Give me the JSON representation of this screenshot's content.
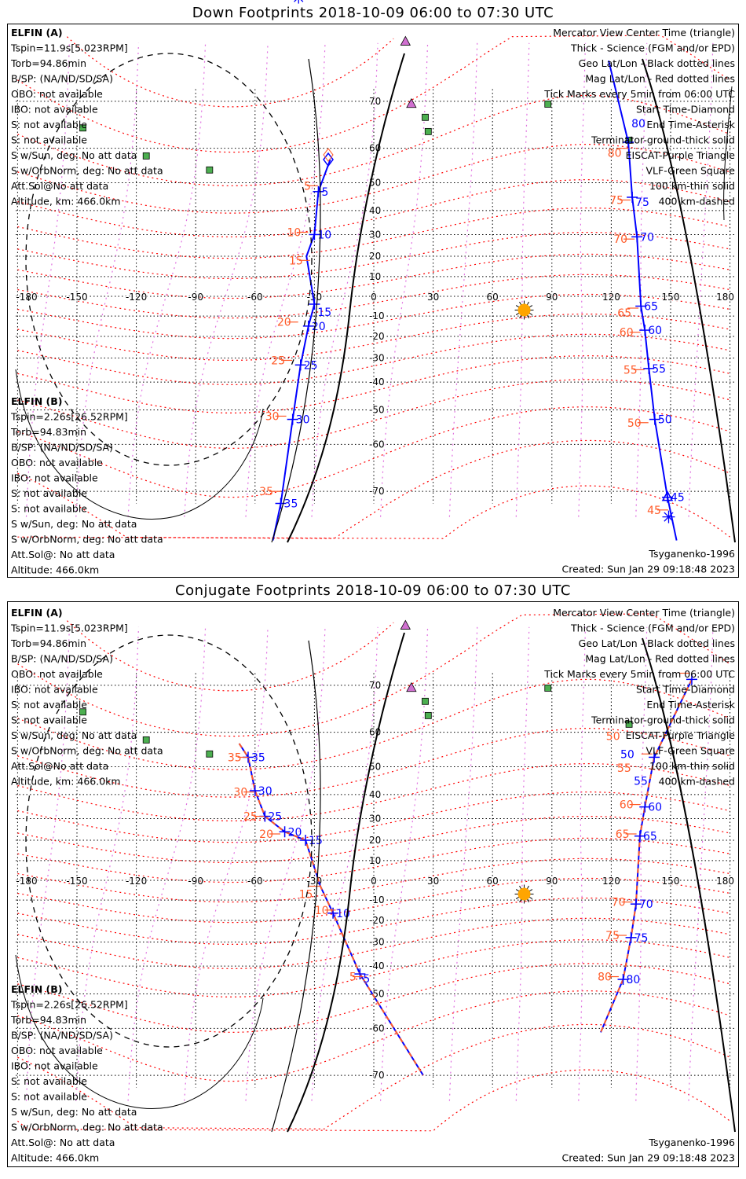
{
  "panels": [
    {
      "title": "Down Footprints 2018-10-09 06:00 to 07:30 UTC",
      "elfin_a": {
        "name": "ELFIN (A)",
        "lines": [
          "Tspin=11.9s[5.023RPM]",
          "Torb=94.86min",
          "B/SP: (NA/ND/SD/SA)",
          "OBO: not available",
          "IBO: not available",
          "S: not available",
          "S: not available",
          "S w/Sun, deg: No att data",
          "S w/OrbNorm, deg: No att data",
          "Att.Sol@No att data",
          "Altitude, km: 466.0km"
        ]
      },
      "elfin_b": {
        "name": "ELFIN (B)",
        "lines": [
          "Tspin=2.26s[26.52RPM]",
          "Torb=94.83min",
          "B/SP: (NA/ND/SD/SA)",
          "OBO: not available",
          "IBO: not available",
          "S: not available",
          "S: not available",
          "S w/Sun, deg: No att data",
          "S w/OrbNorm, deg: No att data",
          "Att.Sol@: No att data",
          "Altitude: 466.0km"
        ]
      },
      "model": "Tsyganenko-1996",
      "created": "Created: Sun Jan 29 09:18:48 2023",
      "tracks": [
        {
          "style": "solid",
          "points": [
            [
              -22,
              57
            ],
            [
              -28,
              47
            ],
            [
              -30,
              30
            ],
            [
              -34,
              20
            ],
            [
              -30,
              -4
            ],
            [
              -33,
              -15
            ],
            [
              -37,
              -33
            ],
            [
              -41,
              -53
            ],
            [
              -47,
              -72
            ],
            [
              -51,
              -77
            ]
          ],
          "ticks": [
            {
              "label": "5",
              "lon": -28,
              "lat": 47
            },
            {
              "label": "10",
              "lon": -30,
              "lat": 30
            },
            {
              "label": "15",
              "lon": -30,
              "lat": -4
            },
            {
              "label": "20",
              "lon": -33,
              "lat": -15
            },
            {
              "label": "25",
              "lon": -37,
              "lat": -33
            },
            {
              "label": "30",
              "lon": -41,
              "lat": -53
            },
            {
              "label": "35",
              "lon": -47,
              "lat": -72
            }
          ],
          "red_ticks": [
            {
              "label": "5",
              "lon": -31,
              "lat": 49
            },
            {
              "label": "10",
              "lon": -36,
              "lat": 31
            },
            {
              "label": "15",
              "lon": -35,
              "lat": 18
            },
            {
              "label": "20",
              "lon": -41,
              "lat": -13
            },
            {
              "label": "25",
              "lon": -44,
              "lat": -31
            },
            {
              "label": "30",
              "lon": -47,
              "lat": -52
            },
            {
              "label": "35",
              "lon": -50,
              "lat": -70
            }
          ],
          "start_marker": [
            -23,
            57
          ],
          "end_marker": [
            -38,
            85
          ]
        },
        {
          "style": "solid",
          "points": [
            [
              118.7,
              76
            ],
            [
              128.6,
              61.5
            ],
            [
              130.6,
              45
            ],
            [
              133,
              29
            ],
            [
              135,
              -5
            ],
            [
              137,
              -17
            ],
            [
              139,
              -34.5
            ],
            [
              142,
              -53
            ],
            [
              148.4,
              -71
            ],
            [
              153,
              -77
            ]
          ],
          "ticks": [
            {
              "label": "80",
              "lon": 128.6,
              "lat": 61.5
            },
            {
              "label": "75",
              "lon": 130.6,
              "lat": 45
            },
            {
              "label": "70",
              "lon": 133,
              "lat": 29
            },
            {
              "label": "65",
              "lon": 135,
              "lat": -5
            },
            {
              "label": "60",
              "lon": 137,
              "lat": -17
            },
            {
              "label": "55",
              "lon": 139,
              "lat": -34.5
            },
            {
              "label": "50",
              "lon": 142,
              "lat": -53
            },
            {
              "label": "45",
              "lon": 148.4,
              "lat": -71
            }
          ],
          "red_ticks": [
            {
              "label": "80",
              "lon": 126,
              "lat": 60
            },
            {
              "label": "75",
              "lon": 127,
              "lat": 44
            },
            {
              "label": "70",
              "lon": 129,
              "lat": 28
            },
            {
              "label": "65",
              "lon": 131,
              "lat": -6
            },
            {
              "label": "60",
              "lon": 132,
              "lat": -18
            },
            {
              "label": "55",
              "lon": 134,
              "lat": -35
            },
            {
              "label": "50",
              "lon": 136,
              "lat": -54
            },
            {
              "label": "45",
              "lon": 146,
              "lat": -73
            }
          ],
          "center_marker": [
            148.4,
            -71
          ],
          "end_marker": [
            149,
            -74
          ]
        }
      ]
    },
    {
      "title": "Conjugate Footprints 2018-10-09 06:00 to 07:30 UTC",
      "elfin_a": {
        "name": "ELFIN (A)",
        "lines": [
          "Tspin=11.9s[5.023RPM]",
          "Torb=94.86min",
          "B/SP: (NA/ND/SD/SA)",
          "OBO: not available",
          "IBO: not available",
          "S: not available",
          "S: not available",
          "S w/Sun, deg: No att data",
          "S w/OrbNorm, deg: No att data",
          "Att.Sol@No att data",
          "Altitude, km: 466.0km"
        ]
      },
      "elfin_b": {
        "name": "ELFIN (B)",
        "lines": [
          "Tspin=2.26s[26.52RPM]",
          "Torb=94.83min",
          "B/SP: (NA/ND/SD/SA)",
          "OBO: not available",
          "IBO: not available",
          "S: not available",
          "S: not available",
          "S w/Sun, deg: No att data",
          "S w/OrbNorm, deg: No att data",
          "Att.Sol@: No att data",
          "Altitude: 466.0km"
        ]
      },
      "model": "Tsyganenko-1996",
      "created": "Created: Sun Jan 29 09:18:48 2023",
      "tracks": [
        {
          "style": "dashed",
          "points": [
            [
              -68,
              57
            ],
            [
              -63.5,
              53
            ],
            [
              -60,
              41.5
            ],
            [
              -55,
              31
            ],
            [
              -45,
              24
            ],
            [
              -34.5,
              20
            ],
            [
              -27,
              -3
            ],
            [
              -20.6,
              -16.5
            ],
            [
              -7,
              -43
            ],
            [
              25,
              -70
            ]
          ],
          "ticks": [
            {
              "label": "35",
              "lon": -63.5,
              "lat": 53
            },
            {
              "label": "30",
              "lon": -60,
              "lat": 41.5
            },
            {
              "label": "25",
              "lon": -55,
              "lat": 31
            },
            {
              "label": "20",
              "lon": -45,
              "lat": 24
            },
            {
              "label": "15",
              "lon": -34.5,
              "lat": 20
            },
            {
              "label": "10",
              "lon": -20.6,
              "lat": -16.5
            },
            {
              "label": "5",
              "lon": -7,
              "lat": -43
            }
          ],
          "red_ticks": [
            {
              "label": "35",
              "lon": -66,
              "lat": 53
            },
            {
              "label": "30",
              "lon": -63,
              "lat": 41
            },
            {
              "label": "25",
              "lon": -58,
              "lat": 31
            },
            {
              "label": "20",
              "lon": -50,
              "lat": 23
            },
            {
              "label": "15",
              "lon": -30,
              "lat": -3
            },
            {
              "label": "10",
              "lon": -22,
              "lat": -15
            },
            {
              "label": "5",
              "lon": -8,
              "lat": -44
            }
          ]
        },
        {
          "style": "dashed",
          "points": [
            [
              160.7,
              71
            ],
            [
              141.7,
              53
            ],
            [
              137,
              35
            ],
            [
              134.5,
              22
            ],
            [
              132.5,
              -12
            ],
            [
              130,
              -28
            ],
            [
              126,
              -45
            ],
            [
              114.7,
              -61
            ]
          ],
          "ticks": [
            {
              "label": "50",
              "lon": 160.7,
              "lat": 71
            },
            {
              "label": "55",
              "lon": 141.7,
              "lat": 53
            },
            {
              "label": "60",
              "lon": 137,
              "lat": 35
            },
            {
              "label": "65",
              "lon": 134.5,
              "lat": 22
            },
            {
              "label": "70",
              "lon": 132.5,
              "lat": -12
            },
            {
              "label": "75",
              "lon": 130,
              "lat": -28
            },
            {
              "label": "80",
              "lon": 126,
              "lat": -45
            }
          ],
          "red_ticks": [
            {
              "label": "50",
              "lon": 157,
              "lat": 72
            },
            {
              "label": "55",
              "lon": 138,
              "lat": 54
            },
            {
              "label": "60",
              "lon": 132,
              "lat": 36
            },
            {
              "label": "65",
              "lon": 130,
              "lat": 23
            },
            {
              "label": "70",
              "lon": 128,
              "lat": -11
            },
            {
              "label": "75",
              "lon": 125,
              "lat": -27
            },
            {
              "label": "80",
              "lon": 121,
              "lat": -44
            }
          ]
        }
      ]
    }
  ],
  "legend": [
    "Mercator View Center Time (triangle)",
    "Thick - Science (FGM and/or EPD)",
    "Geo Lat/Lon - Black dotted lines",
    "Mag Lat/Lon - Red dotted lines",
    "Tick Marks every 5min from 06:00 UTC",
    "Start Time-Diamond",
    "End Time-Asterisk",
    "Terminator-ground-thick solid",
    "EISCAT-Purple Triangle",
    "VLF-Green Square",
    "100 km-thin solid",
    "400 km-dashed"
  ],
  "legend_colors": [
    "#000000",
    "#000000",
    "#000000",
    "#ff0000",
    "#000000",
    "#000000",
    "#000000",
    "#000000",
    "#e070e0",
    "#3aa050",
    "#000000",
    "#000000"
  ],
  "lon_labels": [
    "-180",
    "-150",
    "-120",
    "-90",
    "-60",
    "-30",
    "0",
    "30",
    "60",
    "90",
    "120",
    "150",
    "180"
  ],
  "lat_labels": [
    "70",
    "60",
    "50",
    "40",
    "30",
    "20",
    "10",
    "-10",
    "-20",
    "-30",
    "-40",
    "-50",
    "-60",
    "-70"
  ],
  "vlf_stations": [
    [
      -147,
      64.8
    ],
    [
      -115,
      58
    ],
    [
      -83,
      54
    ],
    [
      26,
      67
    ],
    [
      27.5,
      64
    ],
    [
      88,
      69.5
    ],
    [
      129,
      62
    ]
  ],
  "eiscat_sites": [
    [
      16,
      78.2
    ],
    [
      19,
      69.6
    ]
  ],
  "sun": [
    76,
    -7
  ],
  "colors": {
    "elfin_a": "#0000ff",
    "elfin_b": "#ff5a28",
    "mag": "#ff0000",
    "mag_lon": "#e070e0",
    "vlf": "#4caf50",
    "eiscat": "#d070d0",
    "sun": "#ffa500"
  }
}
